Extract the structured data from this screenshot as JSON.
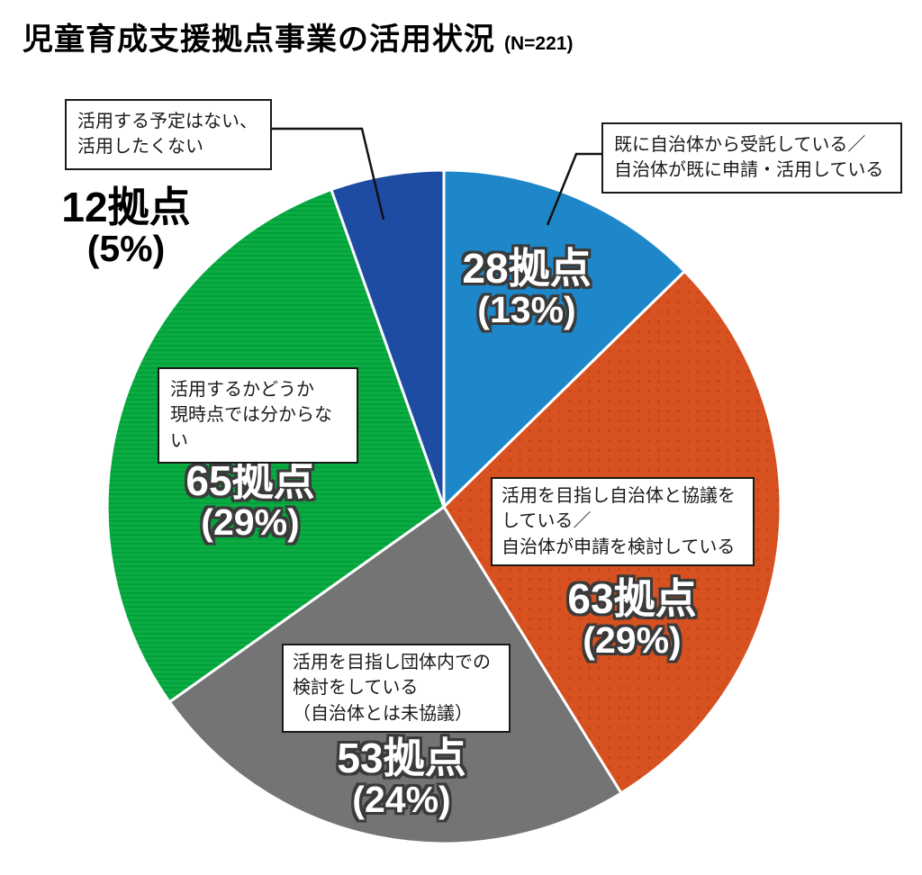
{
  "header": {
    "title": "児童育成支援拠点事業の活用状況",
    "n_label": "(N=221)"
  },
  "chart_data": {
    "type": "pie",
    "title": "児童育成支援拠点事業の活用状況",
    "n_total": 221,
    "unit": "拠点",
    "start_angle": "12時の位置から時計回り",
    "legend_position": "callout-labels",
    "slices": [
      {
        "name": "既に自治体から受託している／自治体が既に申請・活用している",
        "callout_lines": [
          "既に自治体から受託している／",
          "自治体が既に申請・活用している"
        ],
        "value": 28,
        "pct": 13,
        "value_label": "28拠点",
        "pct_label": "(13%)",
        "color": "#1E87C9",
        "pattern": "none"
      },
      {
        "name": "活用を目指し自治体と協議をしている／自治体が申請を検討している",
        "callout_lines": [
          "活用を目指し自治体と協議を",
          "している／",
          "自治体が申請を検討している"
        ],
        "value": 63,
        "pct": 29,
        "value_label": "63拠点",
        "pct_label": "(29%)",
        "color": "#D85120",
        "pattern": "dots",
        "pattern_color": "#C4451A"
      },
      {
        "name": "活用を目指し団体内での検討をしている（自治体とは未協議）",
        "callout_lines": [
          "活用を目指し団体内での",
          "検討をしている",
          "（自治体とは未協議）"
        ],
        "value": 53,
        "pct": 24,
        "value_label": "53拠点",
        "pct_label": "(24%)",
        "color": "#747474",
        "pattern": "none"
      },
      {
        "name": "活用するかどうか現時点では分からない",
        "callout_lines": [
          "活用するかどうか",
          "現時点では分からない"
        ],
        "value": 65,
        "pct": 29,
        "value_label": "65拠点",
        "pct_label": "(29%)",
        "color": "#0CAB43",
        "pattern": "stripes",
        "pattern_color": "#01A139"
      },
      {
        "name": "活用する予定はない、活用したくない",
        "callout_lines": [
          "活用する予定はない、",
          "活用したくない"
        ],
        "value": 12,
        "pct": 5,
        "value_label": "12拠点",
        "pct_label": "(5%)",
        "color": "#1F4CA3",
        "pattern": "none"
      }
    ]
  }
}
